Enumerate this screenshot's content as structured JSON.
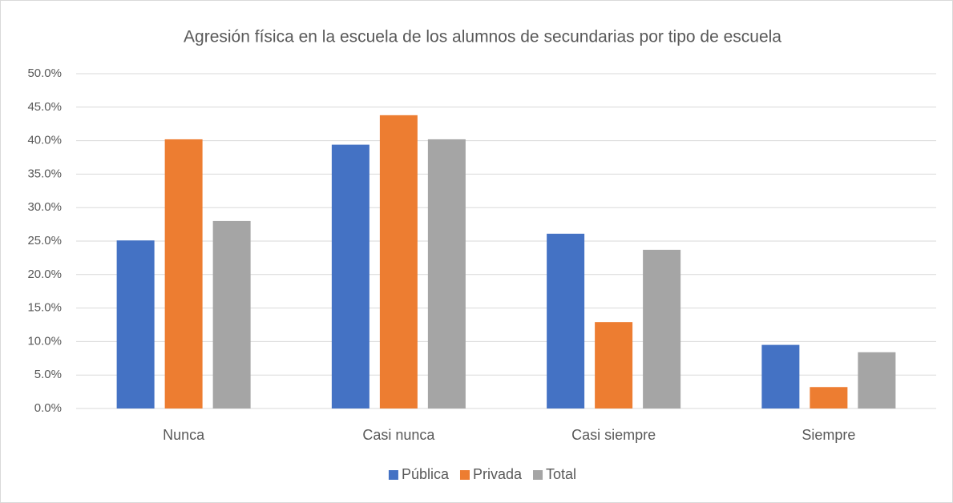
{
  "chart_data": {
    "type": "bar",
    "title": "Agresión física en la escuela de los alumnos de  secundarias por tipo de escuela",
    "categories": [
      "Nunca",
      "Casi nunca",
      "Casi siempre",
      "Siempre"
    ],
    "series": [
      {
        "name": "Pública",
        "color": "#4472c4",
        "values": [
          25.1,
          39.4,
          26.1,
          9.5
        ]
      },
      {
        "name": "Privada",
        "color": "#ed7d31",
        "values": [
          40.2,
          43.8,
          12.9,
          3.2
        ]
      },
      {
        "name": "Total",
        "color": "#a5a5a5",
        "values": [
          28.0,
          40.2,
          23.7,
          8.4
        ]
      }
    ],
    "ylim": [
      0,
      50
    ],
    "yticks": [
      {
        "value": 0,
        "label": "0.0%"
      },
      {
        "value": 5,
        "label": "5.0%"
      },
      {
        "value": 10,
        "label": "10.0%"
      },
      {
        "value": 15,
        "label": "15.0%"
      },
      {
        "value": 20,
        "label": "20.0%"
      },
      {
        "value": 25,
        "label": "25.0%"
      },
      {
        "value": 30,
        "label": "30.0%"
      },
      {
        "value": 35,
        "label": "35.0%"
      },
      {
        "value": 40,
        "label": "40.0%"
      },
      {
        "value": 45,
        "label": "45.0%"
      },
      {
        "value": 50,
        "label": "50.0%"
      }
    ],
    "grid": true,
    "legend": "bottom"
  }
}
